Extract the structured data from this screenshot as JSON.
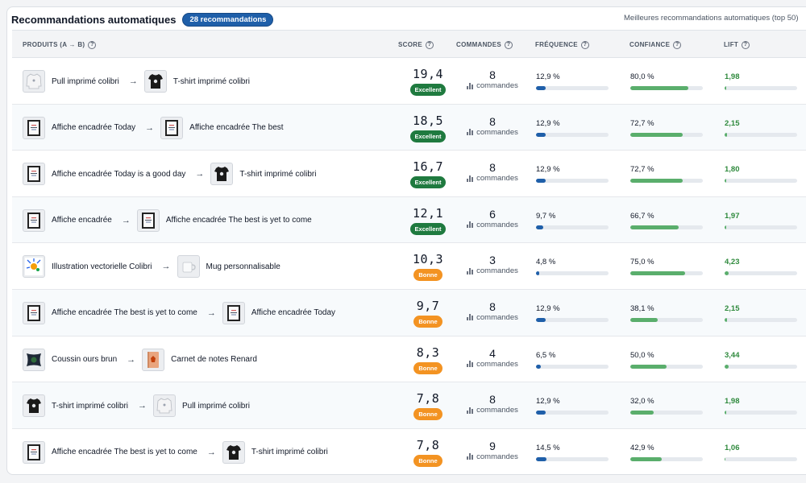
{
  "header": {
    "title": "Recommandations automatiques",
    "count_badge": "28 recommandations",
    "subtitle": "Meilleures recommandations automatiques (top 50)"
  },
  "columns": {
    "products": "PRODUITS (A → B)",
    "score": "SCORE",
    "orders": "COMMANDES",
    "frequency": "FRÉQUENCE",
    "confidence": "CONFIANCE",
    "lift": "LIFT"
  },
  "help_glyph": "?",
  "arrow_glyph": "→",
  "colors": {
    "brand": "#1f5fa9",
    "excellent": "#1f7a3f",
    "bonne": "#f39322",
    "confidence_bar": "#5aae6c",
    "lift_text": "#2f8a3d"
  },
  "rows": [
    {
      "a": {
        "name": "Pull imprimé colibri",
        "icon": "sweater-icon"
      },
      "b": {
        "name": "T-shirt imprimé colibri",
        "icon": "tshirt-icon"
      },
      "score": "19,4",
      "rating": "Excellent",
      "rating_type": "excellent",
      "orders": "8",
      "orders_label": "commandes",
      "frequency": "12,9 %",
      "frequency_fraction": 0.129,
      "confidence": "80,0 %",
      "confidence_fraction": 0.8,
      "lift": "1,98",
      "lift_fraction": 0.02
    },
    {
      "a": {
        "name": "Affiche encadrée Today",
        "icon": "framed-poster-icon"
      },
      "b": {
        "name": "Affiche encadrée The best",
        "icon": "framed-poster-icon"
      },
      "score": "18,5",
      "rating": "Excellent",
      "rating_type": "excellent",
      "orders": "8",
      "orders_label": "commandes",
      "frequency": "12,9 %",
      "frequency_fraction": 0.129,
      "confidence": "72,7 %",
      "confidence_fraction": 0.727,
      "lift": "2,15",
      "lift_fraction": 0.03
    },
    {
      "a": {
        "name": "Affiche encadrée Today is a good day",
        "icon": "framed-poster-icon"
      },
      "b": {
        "name": "T-shirt imprimé colibri",
        "icon": "tshirt-icon"
      },
      "score": "16,7",
      "rating": "Excellent",
      "rating_type": "excellent",
      "orders": "8",
      "orders_label": "commandes",
      "frequency": "12,9 %",
      "frequency_fraction": 0.129,
      "confidence": "72,7 %",
      "confidence_fraction": 0.727,
      "lift": "1,80",
      "lift_fraction": 0.02
    },
    {
      "a": {
        "name": "Affiche encadrée",
        "icon": "framed-poster-icon"
      },
      "b": {
        "name": "Affiche encadrée The best is yet to come",
        "icon": "framed-poster-icon"
      },
      "score": "12,1",
      "rating": "Excellent",
      "rating_type": "excellent",
      "orders": "6",
      "orders_label": "commandes",
      "frequency": "9,7 %",
      "frequency_fraction": 0.097,
      "confidence": "66,7 %",
      "confidence_fraction": 0.667,
      "lift": "1,97",
      "lift_fraction": 0.02
    },
    {
      "a": {
        "name": "Illustration vectorielle Colibri",
        "icon": "illustration-icon"
      },
      "b": {
        "name": "Mug personnalisable",
        "icon": "mug-icon"
      },
      "score": "10,3",
      "rating": "Bonne",
      "rating_type": "bonne",
      "orders": "3",
      "orders_label": "commandes",
      "frequency": "4,8 %",
      "frequency_fraction": 0.048,
      "confidence": "75,0 %",
      "confidence_fraction": 0.75,
      "lift": "4,23",
      "lift_fraction": 0.06
    },
    {
      "a": {
        "name": "Affiche encadrée The best is yet to come",
        "icon": "framed-poster-icon"
      },
      "b": {
        "name": "Affiche encadrée Today",
        "icon": "framed-poster-icon"
      },
      "score": "9,7",
      "rating": "Bonne",
      "rating_type": "bonne",
      "orders": "8",
      "orders_label": "commandes",
      "frequency": "12,9 %",
      "frequency_fraction": 0.129,
      "confidence": "38,1 %",
      "confidence_fraction": 0.381,
      "lift": "2,15",
      "lift_fraction": 0.03
    },
    {
      "a": {
        "name": "Coussin ours brun",
        "icon": "cushion-icon"
      },
      "b": {
        "name": "Carnet de notes Renard",
        "icon": "notebook-icon"
      },
      "score": "8,3",
      "rating": "Bonne",
      "rating_type": "bonne",
      "orders": "4",
      "orders_label": "commandes",
      "frequency": "6,5 %",
      "frequency_fraction": 0.065,
      "confidence": "50,0 %",
      "confidence_fraction": 0.5,
      "lift": "3,44",
      "lift_fraction": 0.05
    },
    {
      "a": {
        "name": "T-shirt imprimé colibri",
        "icon": "tshirt-icon"
      },
      "b": {
        "name": "Pull imprimé colibri",
        "icon": "sweater-icon"
      },
      "score": "7,8",
      "rating": "Bonne",
      "rating_type": "bonne",
      "orders": "8",
      "orders_label": "commandes",
      "frequency": "12,9 %",
      "frequency_fraction": 0.129,
      "confidence": "32,0 %",
      "confidence_fraction": 0.32,
      "lift": "1,98",
      "lift_fraction": 0.02
    },
    {
      "a": {
        "name": "Affiche encadrée The best is yet to come",
        "icon": "framed-poster-icon"
      },
      "b": {
        "name": "T-shirt imprimé colibri",
        "icon": "tshirt-icon"
      },
      "score": "7,8",
      "rating": "Bonne",
      "rating_type": "bonne",
      "orders": "9",
      "orders_label": "commandes",
      "frequency": "14,5 %",
      "frequency_fraction": 0.145,
      "confidence": "42,9 %",
      "confidence_fraction": 0.429,
      "lift": "1,06",
      "lift_fraction": 0.01
    }
  ]
}
